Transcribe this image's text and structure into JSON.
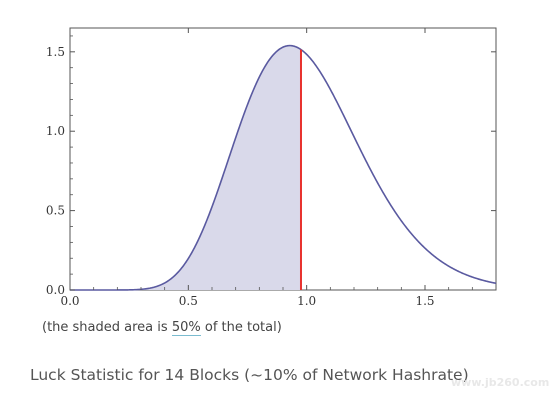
{
  "chart_data": {
    "type": "area",
    "title": "Luck Statistic for 14 Blocks (~10% of Network Hashrate)",
    "xlabel": "",
    "ylabel": "",
    "xlim": [
      0.0,
      1.8
    ],
    "ylim": [
      0.0,
      1.65
    ],
    "x_ticks": [
      "0.0",
      "0.5",
      "1.0",
      "1.5"
    ],
    "y_ticks": [
      "0.0",
      "0.5",
      "1.0",
      "1.5"
    ],
    "grid": false,
    "distribution": {
      "shape": 14,
      "rate": 14
    },
    "shaded_region": {
      "from": 0.0,
      "to": 0.976
    },
    "marker_x": 0.976,
    "peak": {
      "x": 0.93,
      "y": 1.53
    },
    "caption": {
      "prefix": "(the shaded area is",
      "percent": "50%",
      "suffix": "of the total)"
    },
    "colors": {
      "curve": "#5a5aa0",
      "fill": "#d9d9ea",
      "marker": "#e8322e",
      "axis": "#555555"
    }
  },
  "watermark": "www.jb260.com"
}
